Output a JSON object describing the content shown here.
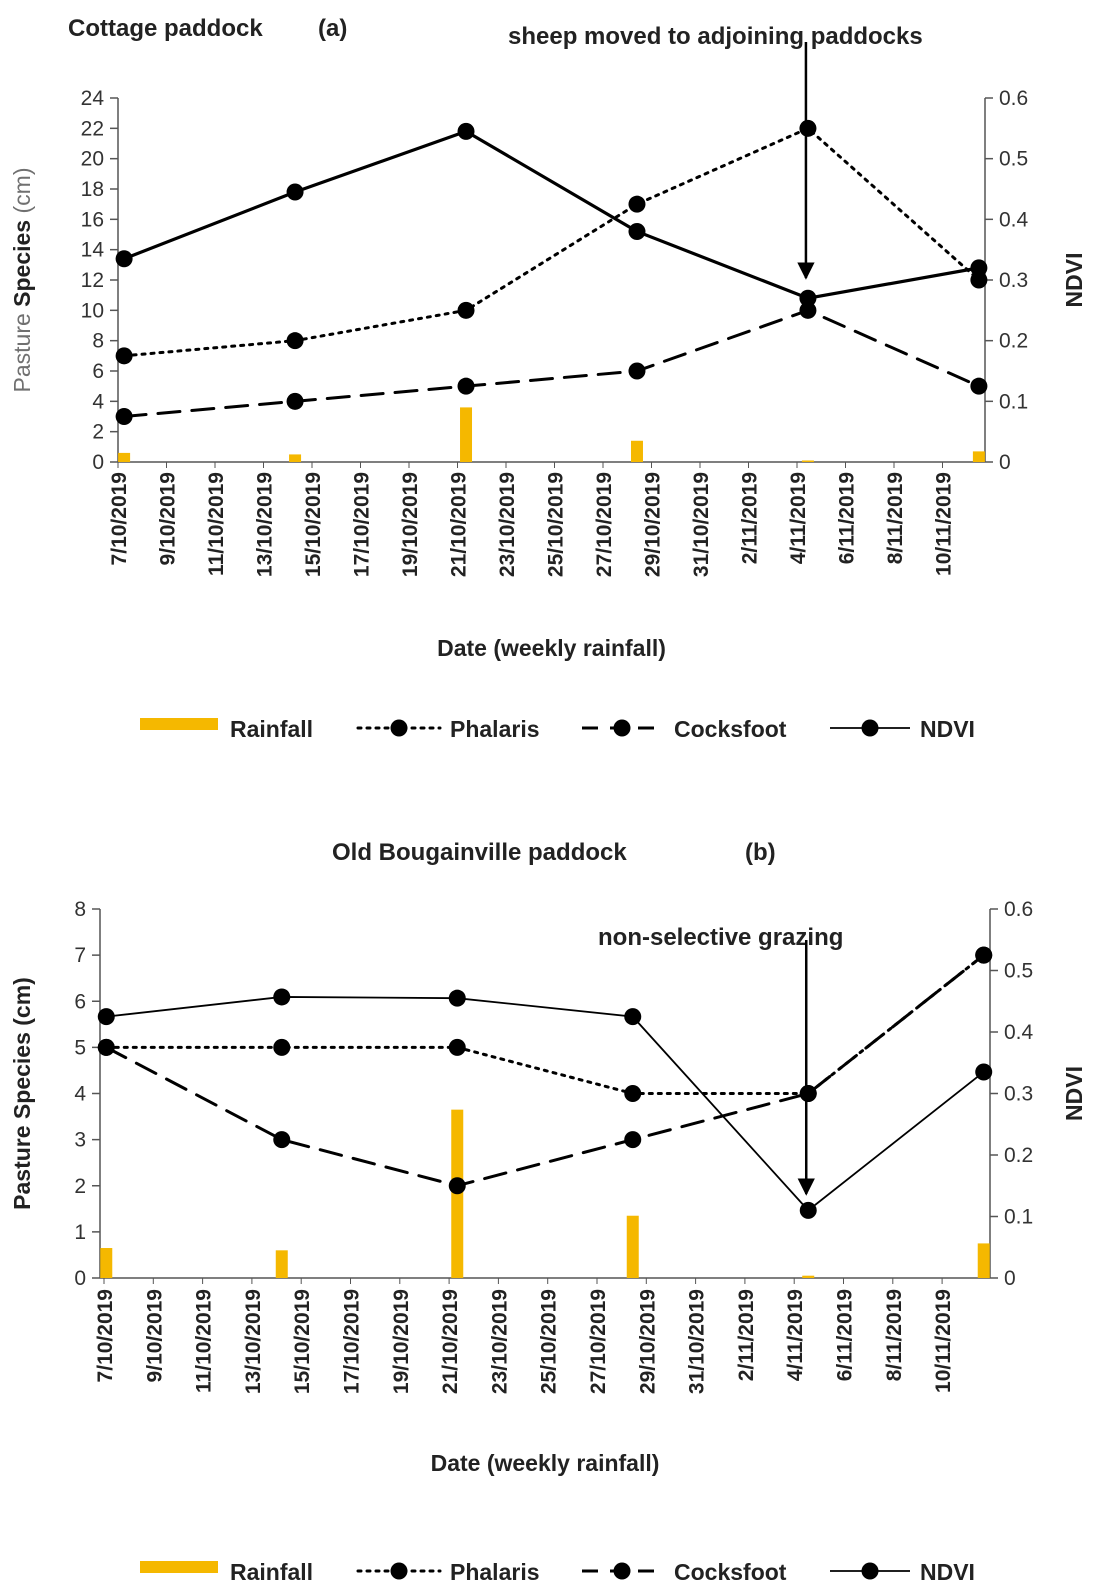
{
  "colors": {
    "rainfall": "#F5B800",
    "line": "#000000",
    "axis": "#555555"
  },
  "legend_items": [
    {
      "key": "rainfall",
      "label": "Rainfall"
    },
    {
      "key": "phalaris",
      "label": "Phalaris"
    },
    {
      "key": "cocksfoot",
      "label": "Cocksfoot"
    },
    {
      "key": "ndvi",
      "label": "NDVI"
    }
  ],
  "chart_data": [
    {
      "type": "line",
      "title": "Cottage paddock",
      "panel_label": "(a)",
      "xlabel": "Date (weekly rainfall)",
      "ylabel_prefix": "Pasture ",
      "ylabel_main": "Species",
      "ylabel_suffix": " (cm)",
      "y2label": "NDVI",
      "ylim": [
        0,
        24
      ],
      "y_ticks": [
        0,
        2,
        4,
        6,
        8,
        10,
        12,
        14,
        16,
        18,
        20,
        22,
        24
      ],
      "y2lim": [
        0,
        0.6
      ],
      "y2_ticks": [
        "0",
        "0.1",
        "0.2",
        "0.3",
        "0.4",
        "0.5",
        "0.6"
      ],
      "x_tick_labels": [
        "7/10/2019",
        "9/10/2019",
        "11/10/2019",
        "13/10/2019",
        "15/10/2019",
        "17/10/2019",
        "19/10/2019",
        "21/10/2019",
        "23/10/2019",
        "25/10/2019",
        "27/10/2019",
        "29/10/2019",
        "31/10/2019",
        "2/11/2019",
        "4/11/2019",
        "6/11/2019",
        "8/11/2019",
        "10/11/2019"
      ],
      "x_days": [
        0,
        7,
        14,
        21,
        28,
        35
      ],
      "series": [
        {
          "name": "Rainfall",
          "axis": "left",
          "kind": "bar",
          "values": [
            0.6,
            0.5,
            3.6,
            1.4,
            0.1,
            0.7
          ]
        },
        {
          "name": "Phalaris",
          "axis": "left",
          "style": "dotted",
          "values": [
            7,
            8,
            10,
            17,
            22,
            12
          ]
        },
        {
          "name": "Cocksfoot",
          "axis": "left",
          "style": "dashed",
          "values": [
            3,
            4,
            5,
            6,
            10,
            5
          ]
        },
        {
          "name": "NDVI",
          "axis": "right",
          "style": "solid-thick",
          "values": [
            0.335,
            0.445,
            0.545,
            0.38,
            0.27,
            0.32
          ]
        }
      ],
      "annotation": {
        "text": "sheep moved to adjoining paddocks",
        "x_day": 28
      }
    },
    {
      "type": "line",
      "title": "Old Bougainville paddock",
      "panel_label": "(b)",
      "xlabel": "Date (weekly rainfall)",
      "ylabel_prefix": "",
      "ylabel_main": "Pasture Species",
      "ylabel_suffix": " (cm)",
      "y2label": "NDVI",
      "ylim": [
        0,
        8
      ],
      "y_ticks": [
        0,
        1,
        2,
        3,
        4,
        5,
        6,
        7,
        8
      ],
      "y2lim": [
        0,
        0.6
      ],
      "y2_ticks": [
        "0",
        "0.1",
        "0.2",
        "0.3",
        "0.4",
        "0.5",
        "0.6"
      ],
      "x_tick_labels": [
        "7/10/2019",
        "9/10/2019",
        "11/10/2019",
        "13/10/2019",
        "15/10/2019",
        "17/10/2019",
        "19/10/2019",
        "21/10/2019",
        "23/10/2019",
        "25/10/2019",
        "27/10/2019",
        "29/10/2019",
        "31/10/2019",
        "2/11/2019",
        "4/11/2019",
        "6/11/2019",
        "8/11/2019",
        "10/11/2019"
      ],
      "x_days": [
        0,
        7,
        14,
        21,
        28,
        35
      ],
      "series": [
        {
          "name": "Rainfall",
          "axis": "left",
          "kind": "bar",
          "values": [
            0.65,
            0.6,
            3.65,
            1.35,
            0.05,
            0.75
          ]
        },
        {
          "name": "Phalaris",
          "axis": "left",
          "style": "dotted",
          "values": [
            5,
            5,
            5,
            4,
            4,
            7
          ]
        },
        {
          "name": "Cocksfoot",
          "axis": "left",
          "style": "dashed",
          "values": [
            5,
            3,
            2,
            3,
            4,
            7
          ]
        },
        {
          "name": "NDVI",
          "axis": "right",
          "style": "solid-thin",
          "values": [
            0.425,
            0.457,
            0.455,
            0.425,
            0.11,
            0.335
          ]
        }
      ],
      "annotation": {
        "text": "non-selective grazing",
        "x_day": 28
      }
    }
  ]
}
